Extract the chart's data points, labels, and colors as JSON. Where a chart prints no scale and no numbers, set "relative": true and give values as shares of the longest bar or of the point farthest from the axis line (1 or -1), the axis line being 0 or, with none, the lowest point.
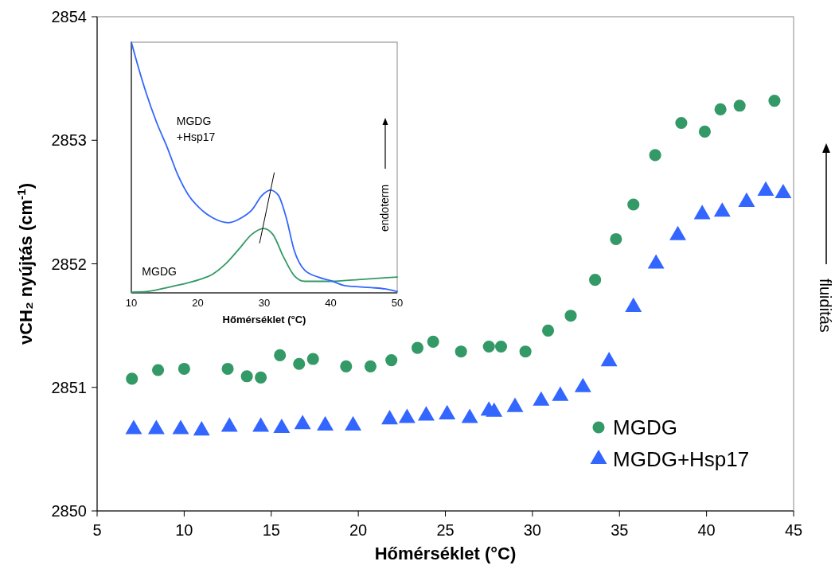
{
  "chart_data": [
    {
      "type": "scatter",
      "xlabel": "Hőmérséklet (°C)",
      "ylabel": "νCH₂ nyújtás (cm$^{-1}$)",
      "xlim": [
        5,
        45
      ],
      "ylim": [
        2850,
        2854
      ],
      "xticks": [
        5,
        10,
        15,
        20,
        25,
        30,
        35,
        40,
        45
      ],
      "yticks": [
        2850,
        2851,
        2852,
        2853,
        2854
      ],
      "legend": "bottom right",
      "annotations": [
        "fluiditás"
      ],
      "series": [
        {
          "name": "MGDG",
          "color": "#339966",
          "marker": "circle",
          "x": [
            7.0,
            8.5,
            10.0,
            12.5,
            13.6,
            14.4,
            15.5,
            16.6,
            17.4,
            19.3,
            20.7,
            21.9,
            23.4,
            24.3,
            25.9,
            27.5,
            28.2,
            29.6,
            30.9,
            32.2,
            33.6,
            34.8,
            35.8,
            37.05,
            38.55,
            39.9,
            40.8,
            41.9,
            43.9
          ],
          "values": [
            2851.07,
            2851.14,
            2851.15,
            2851.15,
            2851.09,
            2851.08,
            2851.26,
            2851.19,
            2851.23,
            2851.17,
            2851.17,
            2851.22,
            2851.32,
            2851.37,
            2851.29,
            2851.33,
            2851.33,
            2851.29,
            2851.46,
            2851.58,
            2851.87,
            2852.2,
            2852.48,
            2852.88,
            2853.14,
            2853.07,
            2853.25,
            2853.28,
            2853.32
          ]
        },
        {
          "name": "MGDG+Hsp17",
          "color": "#3366ff",
          "marker": "triangle",
          "x": [
            7.1,
            8.4,
            9.8,
            11.0,
            12.6,
            14.4,
            15.6,
            16.8,
            18.1,
            19.7,
            21.8,
            22.8,
            23.9,
            25.1,
            26.4,
            27.5,
            27.8,
            29.0,
            30.5,
            31.6,
            32.9,
            34.4,
            35.8,
            37.1,
            38.35,
            39.75,
            40.9,
            42.3,
            43.4,
            44.4
          ],
          "values": [
            2850.66,
            2850.66,
            2850.66,
            2850.65,
            2850.68,
            2850.68,
            2850.67,
            2850.7,
            2850.69,
            2850.69,
            2850.74,
            2850.75,
            2850.77,
            2850.78,
            2850.75,
            2850.81,
            2850.8,
            2850.84,
            2850.89,
            2850.93,
            2851.0,
            2851.21,
            2851.65,
            2852.0,
            2852.23,
            2852.4,
            2852.42,
            2852.5,
            2852.59,
            2852.57
          ]
        }
      ]
    },
    {
      "type": "line",
      "xlabel": "Hőmérséklet (°C)",
      "xlim": [
        10,
        50
      ],
      "xticks": [
        10,
        20,
        30,
        40,
        50
      ],
      "relative": true,
      "tick_labels": "x",
      "annotations": [
        "endoterm"
      ],
      "series": [
        {
          "name": "MGDG",
          "color": "#339966",
          "x": [
            10,
            12.2,
            16.2,
            20.2,
            22.2,
            24.2,
            26.2,
            28.1,
            29.9,
            31.3,
            32.9,
            34.5,
            36.1,
            40.1,
            44.1,
            50
          ],
          "values": [
            0.003,
            0.005,
            0.026,
            0.053,
            0.074,
            0.116,
            0.175,
            0.233,
            0.257,
            0.233,
            0.143,
            0.069,
            0.046,
            0.046,
            0.053,
            0.063
          ]
        },
        {
          "name": "MGDG +Hsp17",
          "color": "#3366ff",
          "x": [
            10,
            11,
            12.2,
            13.8,
            15.4,
            17,
            18.6,
            20.2,
            22.2,
            24.6,
            26.6,
            28.1,
            29.7,
            30.9,
            32.1,
            33.3,
            34.5,
            36.1,
            38.1,
            40.1,
            42.1,
            46.1,
            48.1,
            50
          ],
          "values": [
            1,
            0.905,
            0.8,
            0.68,
            0.58,
            0.47,
            0.39,
            0.34,
            0.3,
            0.28,
            0.3,
            0.33,
            0.39,
            0.41,
            0.39,
            0.3,
            0.17,
            0.09,
            0.063,
            0.048,
            0.029,
            0.021,
            0.016,
            0.005
          ]
        },
        {
          "color": "#000000",
          "x": [
            29.3,
            31.5
          ],
          "values": [
            0.199,
            0.479
          ]
        }
      ]
    }
  ]
}
